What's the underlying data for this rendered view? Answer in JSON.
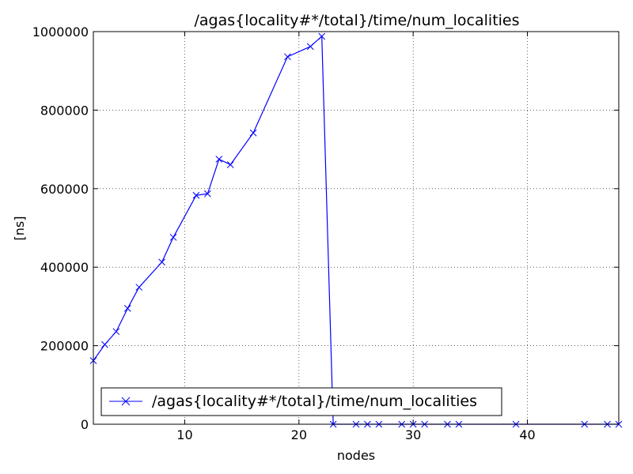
{
  "chart_data": {
    "type": "line",
    "title": "/agas{locality#*/total}/time/num_localities",
    "xlabel": "nodes",
    "ylabel": "[ns]",
    "xlim": [
      2,
      48
    ],
    "ylim": [
      0,
      1000000
    ],
    "xticks": [
      10,
      20,
      30,
      40
    ],
    "yticks": [
      0,
      200000,
      400000,
      600000,
      800000,
      1000000
    ],
    "grid": true,
    "legend_position": "lower-left",
    "series": [
      {
        "name": "/agas{locality#*/total}/time/num_localities",
        "color": "#0000ff",
        "marker": "x",
        "x": [
          2,
          3,
          4,
          5,
          6,
          8,
          9,
          11,
          12,
          13,
          14,
          16,
          19,
          21,
          22,
          23,
          25,
          26,
          27,
          29,
          30,
          31,
          33,
          34,
          39,
          45,
          47,
          48
        ],
        "y": [
          162000,
          203000,
          236000,
          295000,
          349000,
          413000,
          476000,
          583000,
          587000,
          675000,
          661000,
          742000,
          936000,
          962000,
          988000,
          0,
          0,
          0,
          0,
          0,
          0,
          0,
          0,
          0,
          0,
          0,
          0,
          0
        ]
      }
    ]
  }
}
